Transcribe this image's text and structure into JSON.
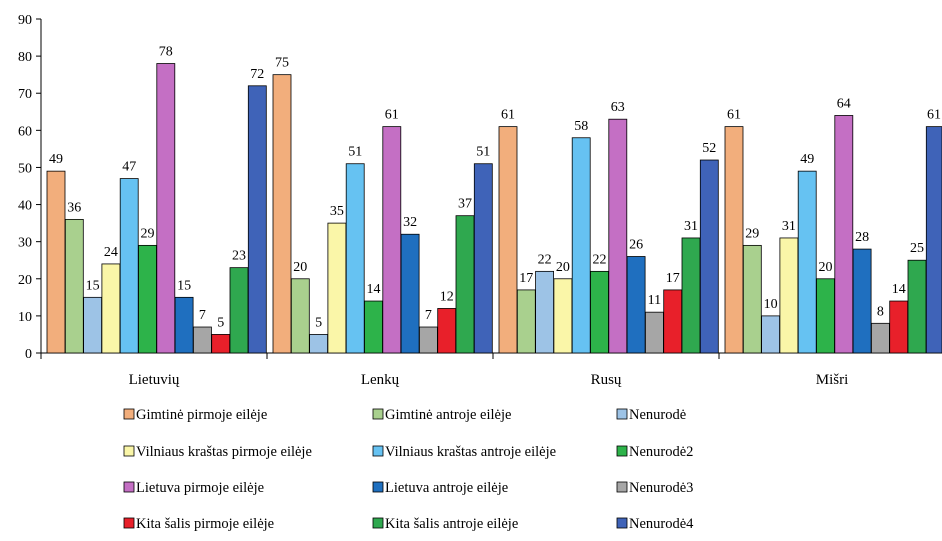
{
  "chart_data": {
    "type": "bar",
    "title": "",
    "xlabel": "",
    "ylabel": "",
    "ylim": [
      0,
      90
    ],
    "yticks": [
      0,
      10,
      20,
      30,
      40,
      50,
      60,
      70,
      80,
      90
    ],
    "grid": false,
    "legend_position": "bottom",
    "categories": [
      "Lietuvių",
      "Lenkų",
      "Rusų",
      "Mišri"
    ],
    "series": [
      {
        "name": "Gimtinė pirmoje eilėje",
        "color": "#F2AE7C",
        "values": [
          49,
          75,
          61,
          61
        ]
      },
      {
        "name": "Gimtinė antroje eilėje",
        "color": "#A9D08E",
        "values": [
          36,
          20,
          17,
          29
        ]
      },
      {
        "name": "Nenurodė",
        "color": "#9DC3E6",
        "values": [
          15,
          5,
          22,
          10
        ]
      },
      {
        "name": "Vilniaus kraštas pirmoje eilėje",
        "color": "#FAF6A8",
        "values": [
          24,
          35,
          20,
          31
        ]
      },
      {
        "name": "Vilniaus kraštas antroje eilėje",
        "color": "#66C2F2",
        "values": [
          47,
          51,
          58,
          49
        ]
      },
      {
        "name": "Nenurodė2",
        "color": "#2DB34A",
        "values": [
          29,
          14,
          22,
          20
        ]
      },
      {
        "name": "Lietuva pirmoje eilėje",
        "color": "#C46FC4",
        "values": [
          78,
          61,
          63,
          64
        ]
      },
      {
        "name": "Lietuva antroje eilėje",
        "color": "#1F6FBF",
        "values": [
          15,
          32,
          26,
          28
        ]
      },
      {
        "name": "Nenurodė3",
        "color": "#A6A6A6",
        "values": [
          7,
          7,
          11,
          8
        ]
      },
      {
        "name": "Kita šalis pirmoje eilėje",
        "color": "#E8202A",
        "values": [
          5,
          12,
          17,
          14
        ]
      },
      {
        "name": "Kita šalis antroje eilėje",
        "color": "#2FA84F",
        "values": [
          23,
          37,
          31,
          25
        ]
      },
      {
        "name": "Nenurodė4",
        "color": "#3F63B8",
        "values": [
          72,
          51,
          52,
          61
        ]
      }
    ]
  }
}
